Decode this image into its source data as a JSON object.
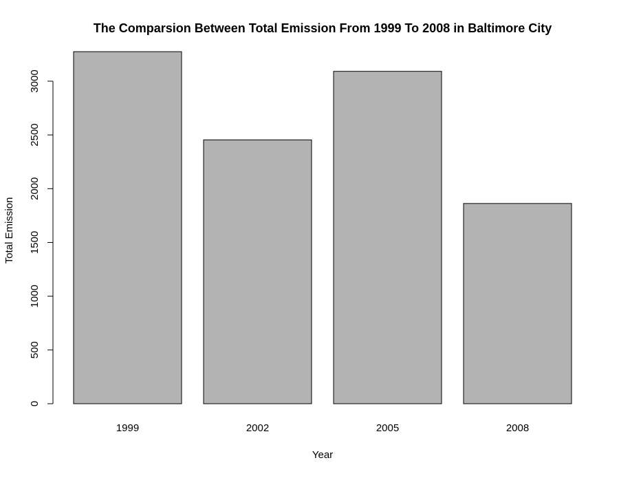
{
  "chart_data": {
    "type": "bar",
    "title": "The Comparsion Between Total Emission From 1999 To 2008 in Baltimore City",
    "xlabel": "Year",
    "ylabel": "Total Emission",
    "categories": [
      "1999",
      "2002",
      "2005",
      "2008"
    ],
    "values": [
      3274.18,
      2453.92,
      3091.35,
      1862.28
    ],
    "yticks": [
      0,
      500,
      1000,
      1500,
      2000,
      2500,
      3000
    ],
    "ylim": [
      0,
      3300
    ],
    "grid": false,
    "legend": "none",
    "bar_color": "#b3b3b3",
    "bar_border_color": "#000000"
  }
}
